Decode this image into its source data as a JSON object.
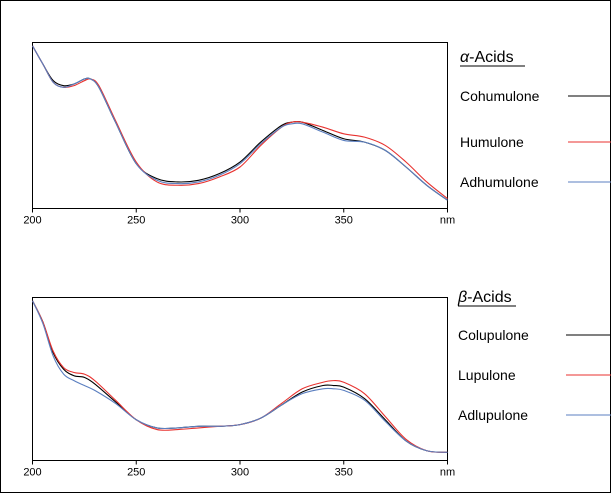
{
  "chart_data": [
    {
      "type": "line",
      "title": "α-Acids",
      "title_greek": "α",
      "title_rest": "-Acids",
      "xlabel": "nm",
      "ylabel": "",
      "xlim": [
        200,
        400
      ],
      "ylim": [
        0,
        1
      ],
      "xticks": [
        "200",
        "250",
        "300",
        "350",
        "nm"
      ],
      "legend_position": "right",
      "grid": false,
      "series": [
        {
          "name": "Cohumulone",
          "color": "#000000",
          "x": [
            200,
            205,
            210,
            215,
            220,
            225,
            228,
            232,
            240,
            250,
            260,
            270,
            280,
            290,
            300,
            310,
            320,
            325,
            330,
            340,
            350,
            360,
            370,
            380,
            390,
            400
          ],
          "y": [
            0.98,
            0.87,
            0.77,
            0.74,
            0.75,
            0.78,
            0.78,
            0.73,
            0.52,
            0.27,
            0.18,
            0.16,
            0.17,
            0.21,
            0.28,
            0.4,
            0.5,
            0.52,
            0.52,
            0.47,
            0.42,
            0.4,
            0.35,
            0.25,
            0.14,
            0.05
          ]
        },
        {
          "name": "Humulone",
          "color": "#e8322f",
          "x": [
            200,
            205,
            210,
            215,
            220,
            225,
            228,
            232,
            240,
            250,
            260,
            270,
            280,
            290,
            300,
            310,
            320,
            325,
            330,
            340,
            350,
            360,
            370,
            380,
            390,
            400
          ],
          "y": [
            0.98,
            0.87,
            0.76,
            0.73,
            0.74,
            0.77,
            0.78,
            0.74,
            0.53,
            0.28,
            0.16,
            0.14,
            0.15,
            0.19,
            0.25,
            0.38,
            0.49,
            0.52,
            0.52,
            0.49,
            0.45,
            0.43,
            0.38,
            0.28,
            0.16,
            0.06
          ]
        },
        {
          "name": "Adhumulone",
          "color": "#5b7fc0",
          "x": [
            200,
            205,
            210,
            215,
            220,
            225,
            228,
            232,
            240,
            250,
            260,
            270,
            280,
            290,
            300,
            310,
            320,
            325,
            330,
            340,
            350,
            360,
            370,
            380,
            390,
            400
          ],
          "y": [
            0.98,
            0.87,
            0.76,
            0.73,
            0.75,
            0.78,
            0.78,
            0.73,
            0.52,
            0.27,
            0.17,
            0.15,
            0.16,
            0.2,
            0.27,
            0.39,
            0.49,
            0.51,
            0.51,
            0.46,
            0.41,
            0.4,
            0.35,
            0.25,
            0.14,
            0.05
          ]
        }
      ]
    },
    {
      "type": "line",
      "title": "β-Acids",
      "title_greek": "β",
      "title_rest": "-Acids",
      "xlabel": "nm",
      "ylabel": "",
      "xlim": [
        200,
        400
      ],
      "ylim": [
        0,
        1
      ],
      "xticks": [
        "200",
        "250",
        "300",
        "350",
        "nm"
      ],
      "legend_position": "right",
      "grid": false,
      "series": [
        {
          "name": "Colupulone",
          "color": "#000000",
          "x": [
            200,
            205,
            210,
            215,
            220,
            225,
            230,
            240,
            250,
            260,
            270,
            280,
            290,
            300,
            310,
            320,
            330,
            340,
            345,
            350,
            360,
            370,
            380,
            390,
            400
          ],
          "y": [
            0.98,
            0.85,
            0.66,
            0.56,
            0.52,
            0.51,
            0.47,
            0.36,
            0.25,
            0.2,
            0.2,
            0.21,
            0.21,
            0.22,
            0.26,
            0.34,
            0.42,
            0.46,
            0.46,
            0.45,
            0.38,
            0.25,
            0.12,
            0.06,
            0.05
          ]
        },
        {
          "name": "Lupulone",
          "color": "#e8322f",
          "x": [
            200,
            205,
            210,
            215,
            220,
            225,
            230,
            240,
            250,
            260,
            270,
            280,
            290,
            300,
            310,
            320,
            330,
            340,
            345,
            350,
            360,
            370,
            380,
            390,
            400
          ],
          "y": [
            0.98,
            0.85,
            0.67,
            0.57,
            0.54,
            0.53,
            0.49,
            0.37,
            0.25,
            0.19,
            0.19,
            0.2,
            0.21,
            0.22,
            0.26,
            0.35,
            0.44,
            0.48,
            0.49,
            0.48,
            0.41,
            0.27,
            0.13,
            0.06,
            0.05
          ]
        },
        {
          "name": "Adlupulone",
          "color": "#5b7fc0",
          "x": [
            200,
            205,
            210,
            215,
            220,
            225,
            230,
            240,
            250,
            260,
            270,
            280,
            290,
            300,
            310,
            320,
            330,
            340,
            345,
            350,
            360,
            370,
            380,
            390,
            400
          ],
          "y": [
            0.98,
            0.84,
            0.64,
            0.53,
            0.49,
            0.46,
            0.43,
            0.35,
            0.25,
            0.2,
            0.2,
            0.21,
            0.21,
            0.22,
            0.26,
            0.34,
            0.41,
            0.44,
            0.44,
            0.43,
            0.37,
            0.24,
            0.12,
            0.06,
            0.05
          ]
        }
      ]
    }
  ]
}
